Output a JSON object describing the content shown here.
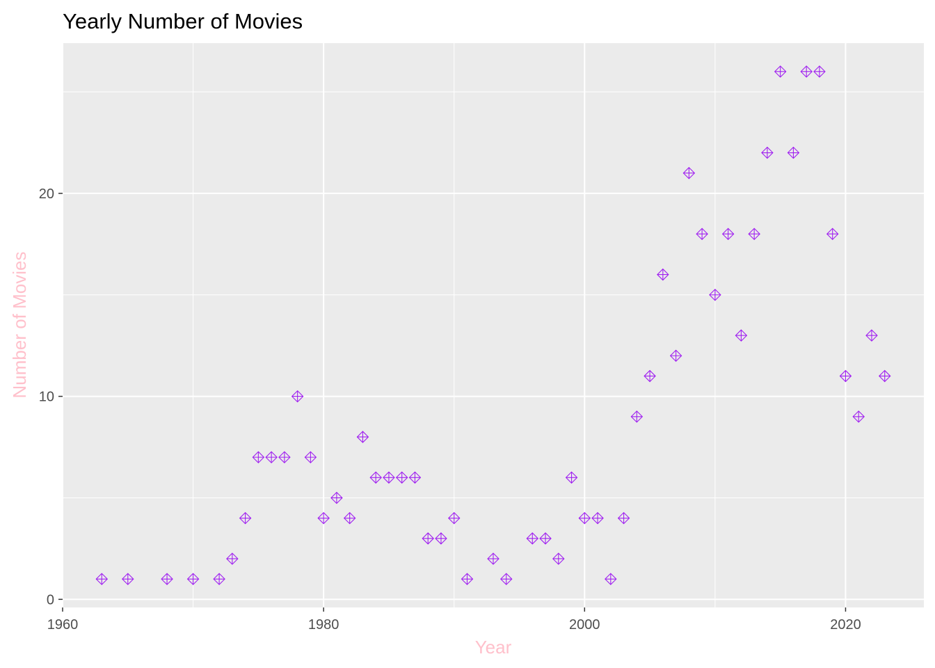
{
  "chart_data": {
    "type": "scatter",
    "title": "Yearly Number of Movies",
    "xlabel": "Year",
    "ylabel": "Number of Movies",
    "xlim": [
      1960,
      2026
    ],
    "ylim": [
      -0.4,
      27.4
    ],
    "x_ticks": [
      1960,
      1980,
      2000,
      2020
    ],
    "y_ticks": [
      0,
      10,
      20
    ],
    "x_tick_labels": [
      "1960",
      "1980",
      "2000",
      "2020"
    ],
    "y_tick_labels": [
      "0",
      "10",
      "20"
    ],
    "grid": true,
    "legend": "none",
    "colors": {
      "panel_bg": "#ebebeb",
      "grid": "#ffffff",
      "marker": "#a020f0",
      "axis_title": "#ffc0cb",
      "tick_label": "#4d4d4d"
    },
    "marker_icon": "diamond-plus",
    "points": [
      {
        "x": 1963,
        "y": 1
      },
      {
        "x": 1965,
        "y": 1
      },
      {
        "x": 1968,
        "y": 1
      },
      {
        "x": 1970,
        "y": 1
      },
      {
        "x": 1972,
        "y": 1
      },
      {
        "x": 1973,
        "y": 2
      },
      {
        "x": 1974,
        "y": 4
      },
      {
        "x": 1975,
        "y": 7
      },
      {
        "x": 1976,
        "y": 7
      },
      {
        "x": 1977,
        "y": 7
      },
      {
        "x": 1978,
        "y": 10
      },
      {
        "x": 1979,
        "y": 7
      },
      {
        "x": 1980,
        "y": 4
      },
      {
        "x": 1981,
        "y": 5
      },
      {
        "x": 1982,
        "y": 4
      },
      {
        "x": 1983,
        "y": 8
      },
      {
        "x": 1984,
        "y": 6
      },
      {
        "x": 1985,
        "y": 6
      },
      {
        "x": 1986,
        "y": 6
      },
      {
        "x": 1987,
        "y": 6
      },
      {
        "x": 1988,
        "y": 3
      },
      {
        "x": 1989,
        "y": 3
      },
      {
        "x": 1990,
        "y": 4
      },
      {
        "x": 1991,
        "y": 1
      },
      {
        "x": 1993,
        "y": 2
      },
      {
        "x": 1994,
        "y": 1
      },
      {
        "x": 1996,
        "y": 3
      },
      {
        "x": 1997,
        "y": 3
      },
      {
        "x": 1998,
        "y": 2
      },
      {
        "x": 1999,
        "y": 6
      },
      {
        "x": 2000,
        "y": 4
      },
      {
        "x": 2001,
        "y": 4
      },
      {
        "x": 2002,
        "y": 1
      },
      {
        "x": 2003,
        "y": 4
      },
      {
        "x": 2004,
        "y": 9
      },
      {
        "x": 2005,
        "y": 11
      },
      {
        "x": 2006,
        "y": 16
      },
      {
        "x": 2007,
        "y": 12
      },
      {
        "x": 2008,
        "y": 21
      },
      {
        "x": 2009,
        "y": 18
      },
      {
        "x": 2010,
        "y": 15
      },
      {
        "x": 2011,
        "y": 18
      },
      {
        "x": 2012,
        "y": 13
      },
      {
        "x": 2013,
        "y": 18
      },
      {
        "x": 2014,
        "y": 22
      },
      {
        "x": 2015,
        "y": 26
      },
      {
        "x": 2016,
        "y": 22
      },
      {
        "x": 2017,
        "y": 26
      },
      {
        "x": 2018,
        "y": 26
      },
      {
        "x": 2019,
        "y": 18
      },
      {
        "x": 2020,
        "y": 11
      },
      {
        "x": 2021,
        "y": 9
      },
      {
        "x": 2022,
        "y": 13
      },
      {
        "x": 2023,
        "y": 11
      }
    ]
  }
}
